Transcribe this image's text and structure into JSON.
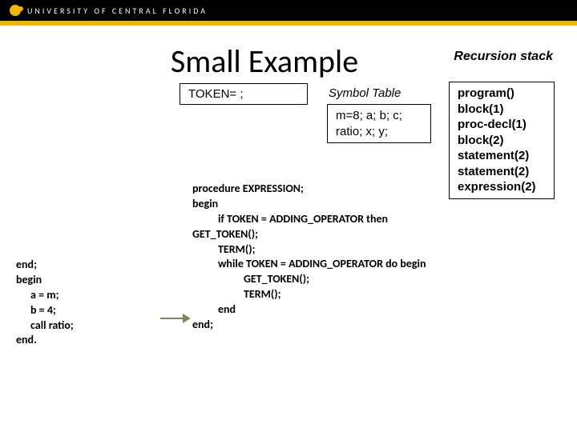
{
  "header": {
    "university": "UNIVERSITY OF CENTRAL FLORIDA",
    "bar_color": "#000000",
    "accent_color": "#f0b800"
  },
  "title": "Small Example",
  "recursion_label": "Recursion stack",
  "token_box": "TOKEN= ;",
  "symbol_label": "Symbol Table",
  "symbol_box_l1": "m=8; a; b; c;",
  "symbol_box_l2": "ratio; x; y;",
  "stack": {
    "l0": "program()",
    "l1": "block(1)",
    "l2": "proc-decl(1)",
    "l3": "block(2)",
    "l4": "statement(2)",
    "l5": "statement(2)",
    "l6": "expression(2)"
  },
  "code_left": {
    "l0": "end;",
    "l1": "begin",
    "l2": "a = m;",
    "l3": "b = 4;",
    "l4": "call ratio;",
    "l5": "end."
  },
  "code_main": {
    "l0": "procedure EXPRESSION;",
    "l1": "begin",
    "l2": "if TOKEN = ADDING_OPERATOR then",
    "l3": "GET_TOKEN();",
    "l4": "TERM();",
    "l5": "while TOKEN = ADDING_OPERATOR do begin",
    "l6": "GET_TOKEN();",
    "l7": "TERM();",
    "l8": "end",
    "l9": "end;"
  },
  "arrow_color": "#7a8a5a"
}
